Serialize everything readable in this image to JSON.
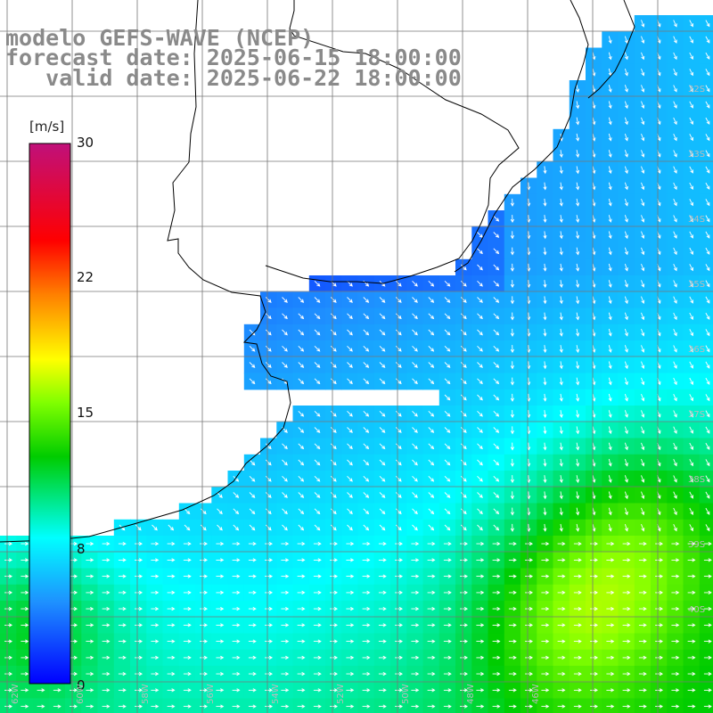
{
  "header": {
    "line1": "modelo GEFS-WAVE (NCEP)",
    "line2": "forecast date: 2025-06-15 18:00:00",
    "line3": "   valid date: 2025-06-22 18:00:00"
  },
  "colorbar": {
    "unit": "[m/s]",
    "ticks": [
      "30",
      "22",
      "15",
      "8",
      "0"
    ],
    "tick_values": [
      30,
      22,
      15,
      8,
      0
    ],
    "min": 0,
    "max": 30
  },
  "colors": {
    "land": "#ffffff",
    "coast": "#000000",
    "grid": "#777777"
  },
  "lon_labels": [
    "62W",
    "60W",
    "58W",
    "56W",
    "54W",
    "52W",
    "50W",
    "48W",
    "46W"
  ],
  "lat_labels": [
    "32S",
    "33S",
    "34S",
    "35S",
    "36S",
    "37S",
    "38S",
    "39S",
    "40S"
  ]
}
